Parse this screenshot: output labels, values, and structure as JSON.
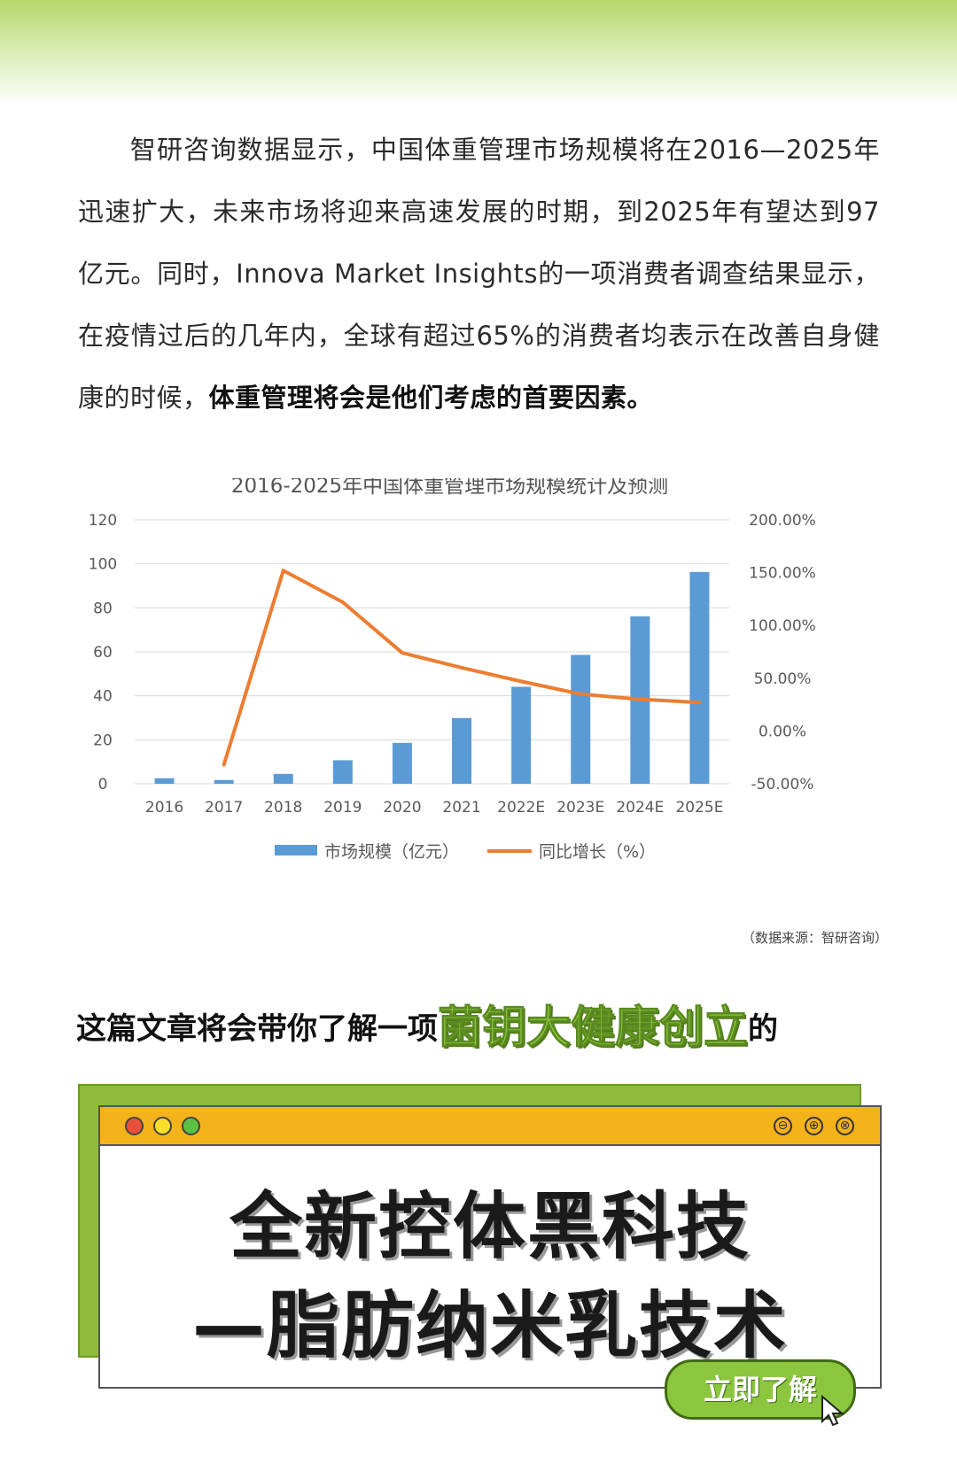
{
  "intro": {
    "indent": "",
    "part1": "智研咨询数据显示，中国体重管理市场规模将在2016—2025年迅速扩大，未来市场将迎来高速发展的时期，到2025年有望达到97亿元。同时，Innova Market Insights的一项消费者调查结果显示，在疫情过后的几年内，全球有超过65%的消费者均表示在改善自身健康的时候，",
    "bold": "体重管理将会是他们考虑的首要因素。"
  },
  "chart_data": {
    "type": "bar",
    "title": "2016-2025年中国体重管理市场规模统计及预测",
    "categories": [
      "2016",
      "2017",
      "2018",
      "2019",
      "2020",
      "2021",
      "2022E",
      "2023E",
      "2024E",
      "2025E"
    ],
    "series": [
      {
        "name": "市场规模（亿元）",
        "type": "bar",
        "axis": "left",
        "color": "#5b9bd5",
        "values": [
          2.5,
          1.7,
          4.5,
          10.7,
          18.6,
          29.9,
          44.1,
          58.6,
          76.1,
          96.3
        ]
      },
      {
        "name": "同比增长（%）",
        "type": "line",
        "axis": "right",
        "color": "#ed7d31",
        "values": [
          null,
          -32,
          152,
          122,
          74,
          60,
          47,
          35,
          30,
          27
        ]
      }
    ],
    "left_axis": {
      "min": 0,
      "max": 120,
      "step": 20,
      "ticks": [
        "0",
        "20",
        "40",
        "60",
        "80",
        "100",
        "120"
      ]
    },
    "right_axis": {
      "min": -50,
      "max": 200,
      "step": 50,
      "ticks": [
        "-50.00%",
        "0.00%",
        "50.00%",
        "100.00%",
        "150.00%",
        "200.00%"
      ]
    },
    "grid": true,
    "legend": "bottom"
  },
  "source_note": "（数据来源：智研咨询）",
  "headline": {
    "before": "这篇文章将会带你了解一项",
    "highlight": "菌钥大健康创立",
    "after": "的"
  },
  "card": {
    "line1": "全新控体黑科技",
    "line2": "—脂肪纳米乳技术",
    "min_symbol": "⊖",
    "max_symbol": "⊕",
    "close_symbol": "⊗"
  },
  "cta": {
    "label": "立即了解"
  },
  "colors": {
    "bar": "#5b9bd5",
    "line": "#ed7d31",
    "accent_green": "#8cc63f",
    "window_bar": "#f4b21b"
  }
}
